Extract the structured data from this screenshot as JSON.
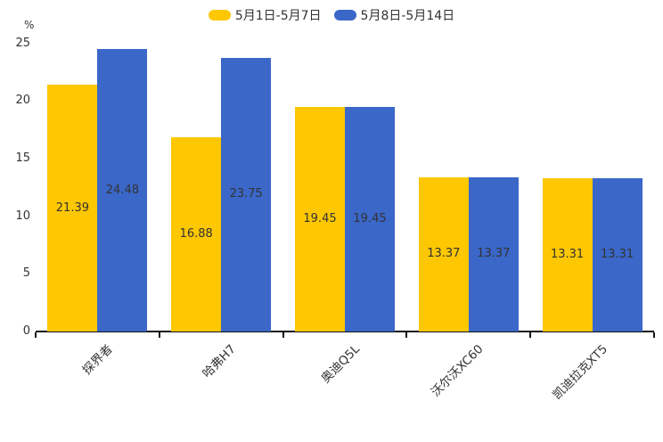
{
  "chart_data": {
    "type": "bar",
    "title": "",
    "categories": [
      "探界者",
      "哈弗H7",
      "奥迪Q5L",
      "沃尔沃XC60",
      "凯迪拉克XT5"
    ],
    "series": [
      {
        "name": "5月1日-5月7日",
        "color": "#FDC702",
        "values": [
          21.39,
          16.88,
          19.45,
          13.37,
          13.31
        ]
      },
      {
        "name": "5月8日-5月14日",
        "color": "#3A67C8",
        "values": [
          24.48,
          23.75,
          19.45,
          13.37,
          13.31
        ]
      }
    ],
    "value_labels": [
      [
        "21.39",
        "16.88",
        "19.45",
        "13.37",
        "13.31"
      ],
      [
        "24.48",
        "23.75",
        "19.45",
        "13.37",
        "13.31"
      ]
    ],
    "xlabel": "",
    "ylabel": "%",
    "ylim": [
      0,
      25
    ],
    "yticks": [
      0,
      5,
      10,
      15,
      20,
      25
    ],
    "grid": false,
    "legend_position": "top",
    "value_label_position": "inside-center",
    "colors": {
      "axis": "#141414",
      "text": "#333333",
      "background": "#ffffff"
    }
  }
}
